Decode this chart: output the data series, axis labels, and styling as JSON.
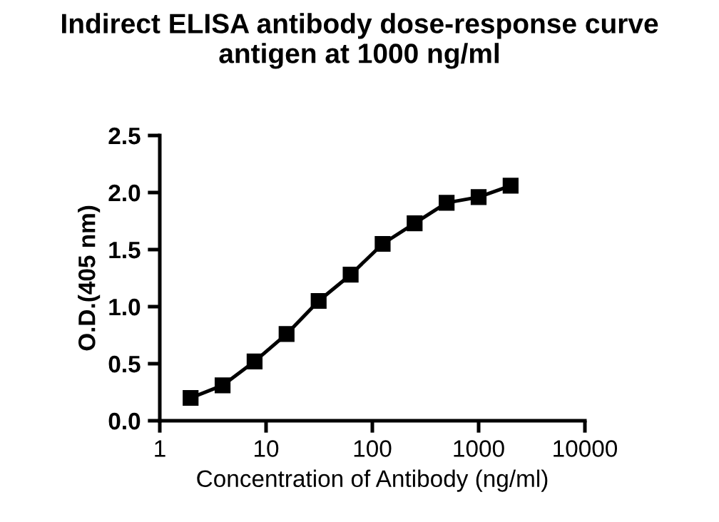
{
  "chart_data": {
    "type": "line",
    "title": "Indirect ELISA antibody dose-response curve\nantigen at 1000 ng/ml",
    "xlabel": "Concentration of Antibody (ng/ml)",
    "ylabel": "O.D.(405 nm)",
    "x": [
      1.95,
      3.9,
      7.8,
      15.6,
      31.25,
      62.5,
      125,
      250,
      500,
      1000,
      2000
    ],
    "series": [
      {
        "color": "#000000",
        "values": [
          0.2,
          0.31,
          0.52,
          0.76,
          1.05,
          1.28,
          1.55,
          1.73,
          1.91,
          1.96,
          2.06
        ]
      }
    ],
    "log": "x",
    "marker": "square",
    "line_style": "solid",
    "grid": false,
    "legend": false,
    "xlim": [
      1,
      10000
    ],
    "xticks": [
      1,
      10,
      100,
      1000,
      10000
    ],
    "ylim": [
      0,
      2.5
    ],
    "yticks": [
      {
        "value": 0,
        "label": "0.0"
      },
      {
        "value": 0.5,
        "label": "0.5"
      },
      {
        "value": 1,
        "label": "1.0"
      },
      {
        "value": 1.5,
        "label": "1.5"
      },
      {
        "value": 2,
        "label": "2.0"
      },
      {
        "value": 2.5,
        "label": "2.5"
      }
    ]
  }
}
